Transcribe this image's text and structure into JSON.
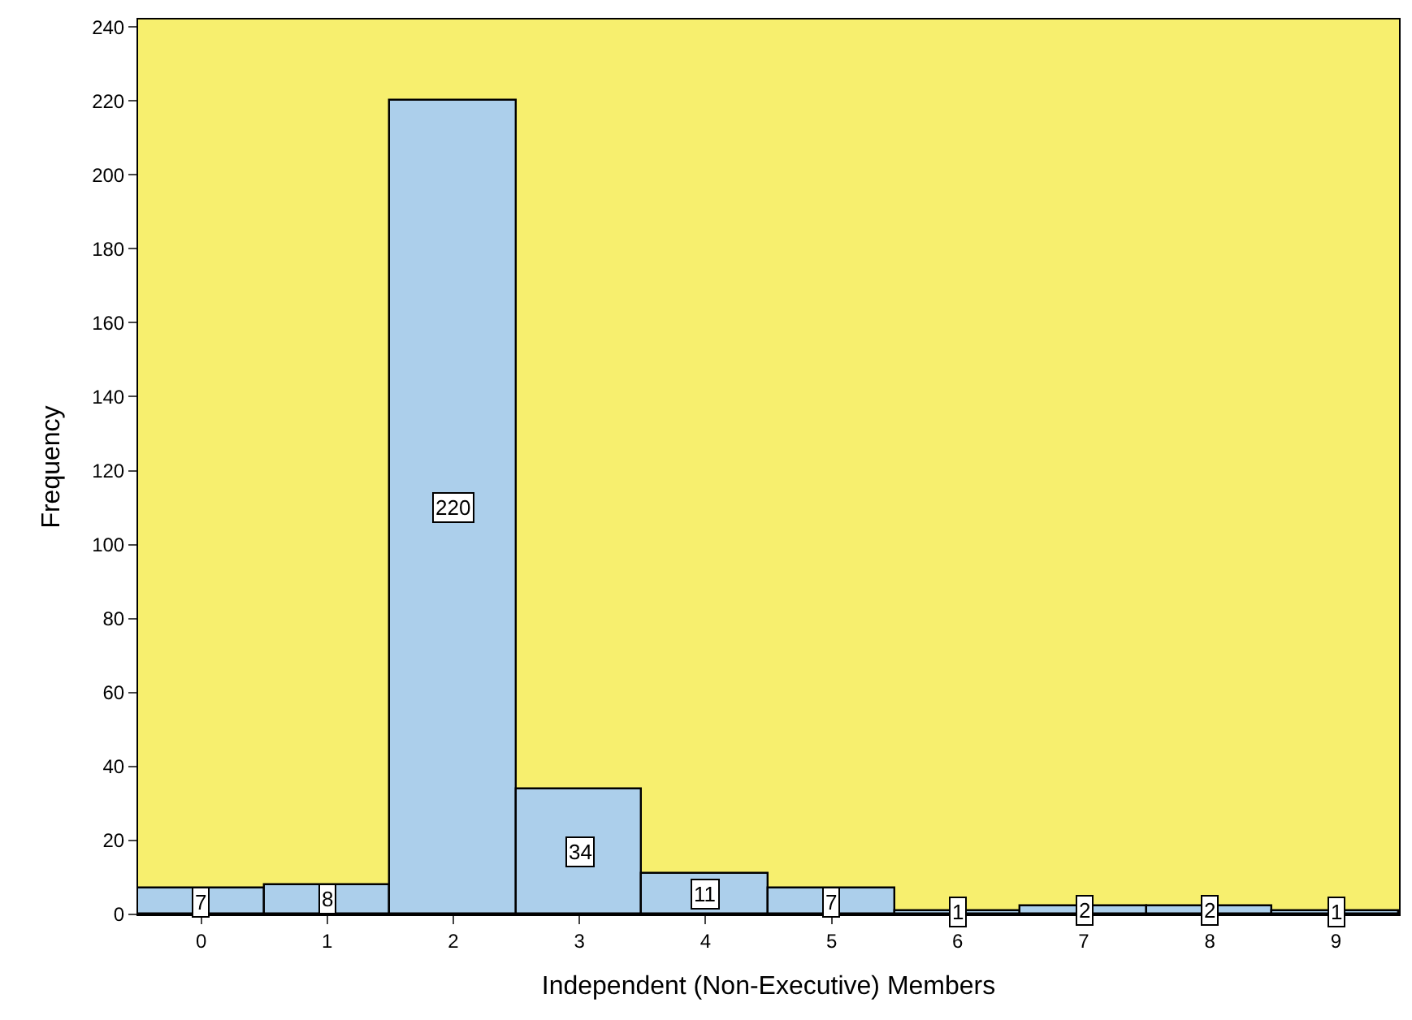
{
  "chart_data": {
    "type": "bar",
    "xlabel": "Independent (Non-Executive) Members",
    "ylabel": "Frequency",
    "categories": [
      "0",
      "1",
      "2",
      "3",
      "4",
      "5",
      "6",
      "7",
      "8",
      "9"
    ],
    "values": [
      7,
      8,
      220,
      34,
      11,
      7,
      1,
      2,
      2,
      1
    ],
    "color": "#accfeb",
    "ylim": [
      0,
      242
    ],
    "yticks": [
      0,
      20,
      40,
      60,
      80,
      100,
      120,
      140,
      160,
      180,
      200,
      220,
      240
    ],
    "grid": false,
    "legend": false,
    "data_labels": true
  }
}
